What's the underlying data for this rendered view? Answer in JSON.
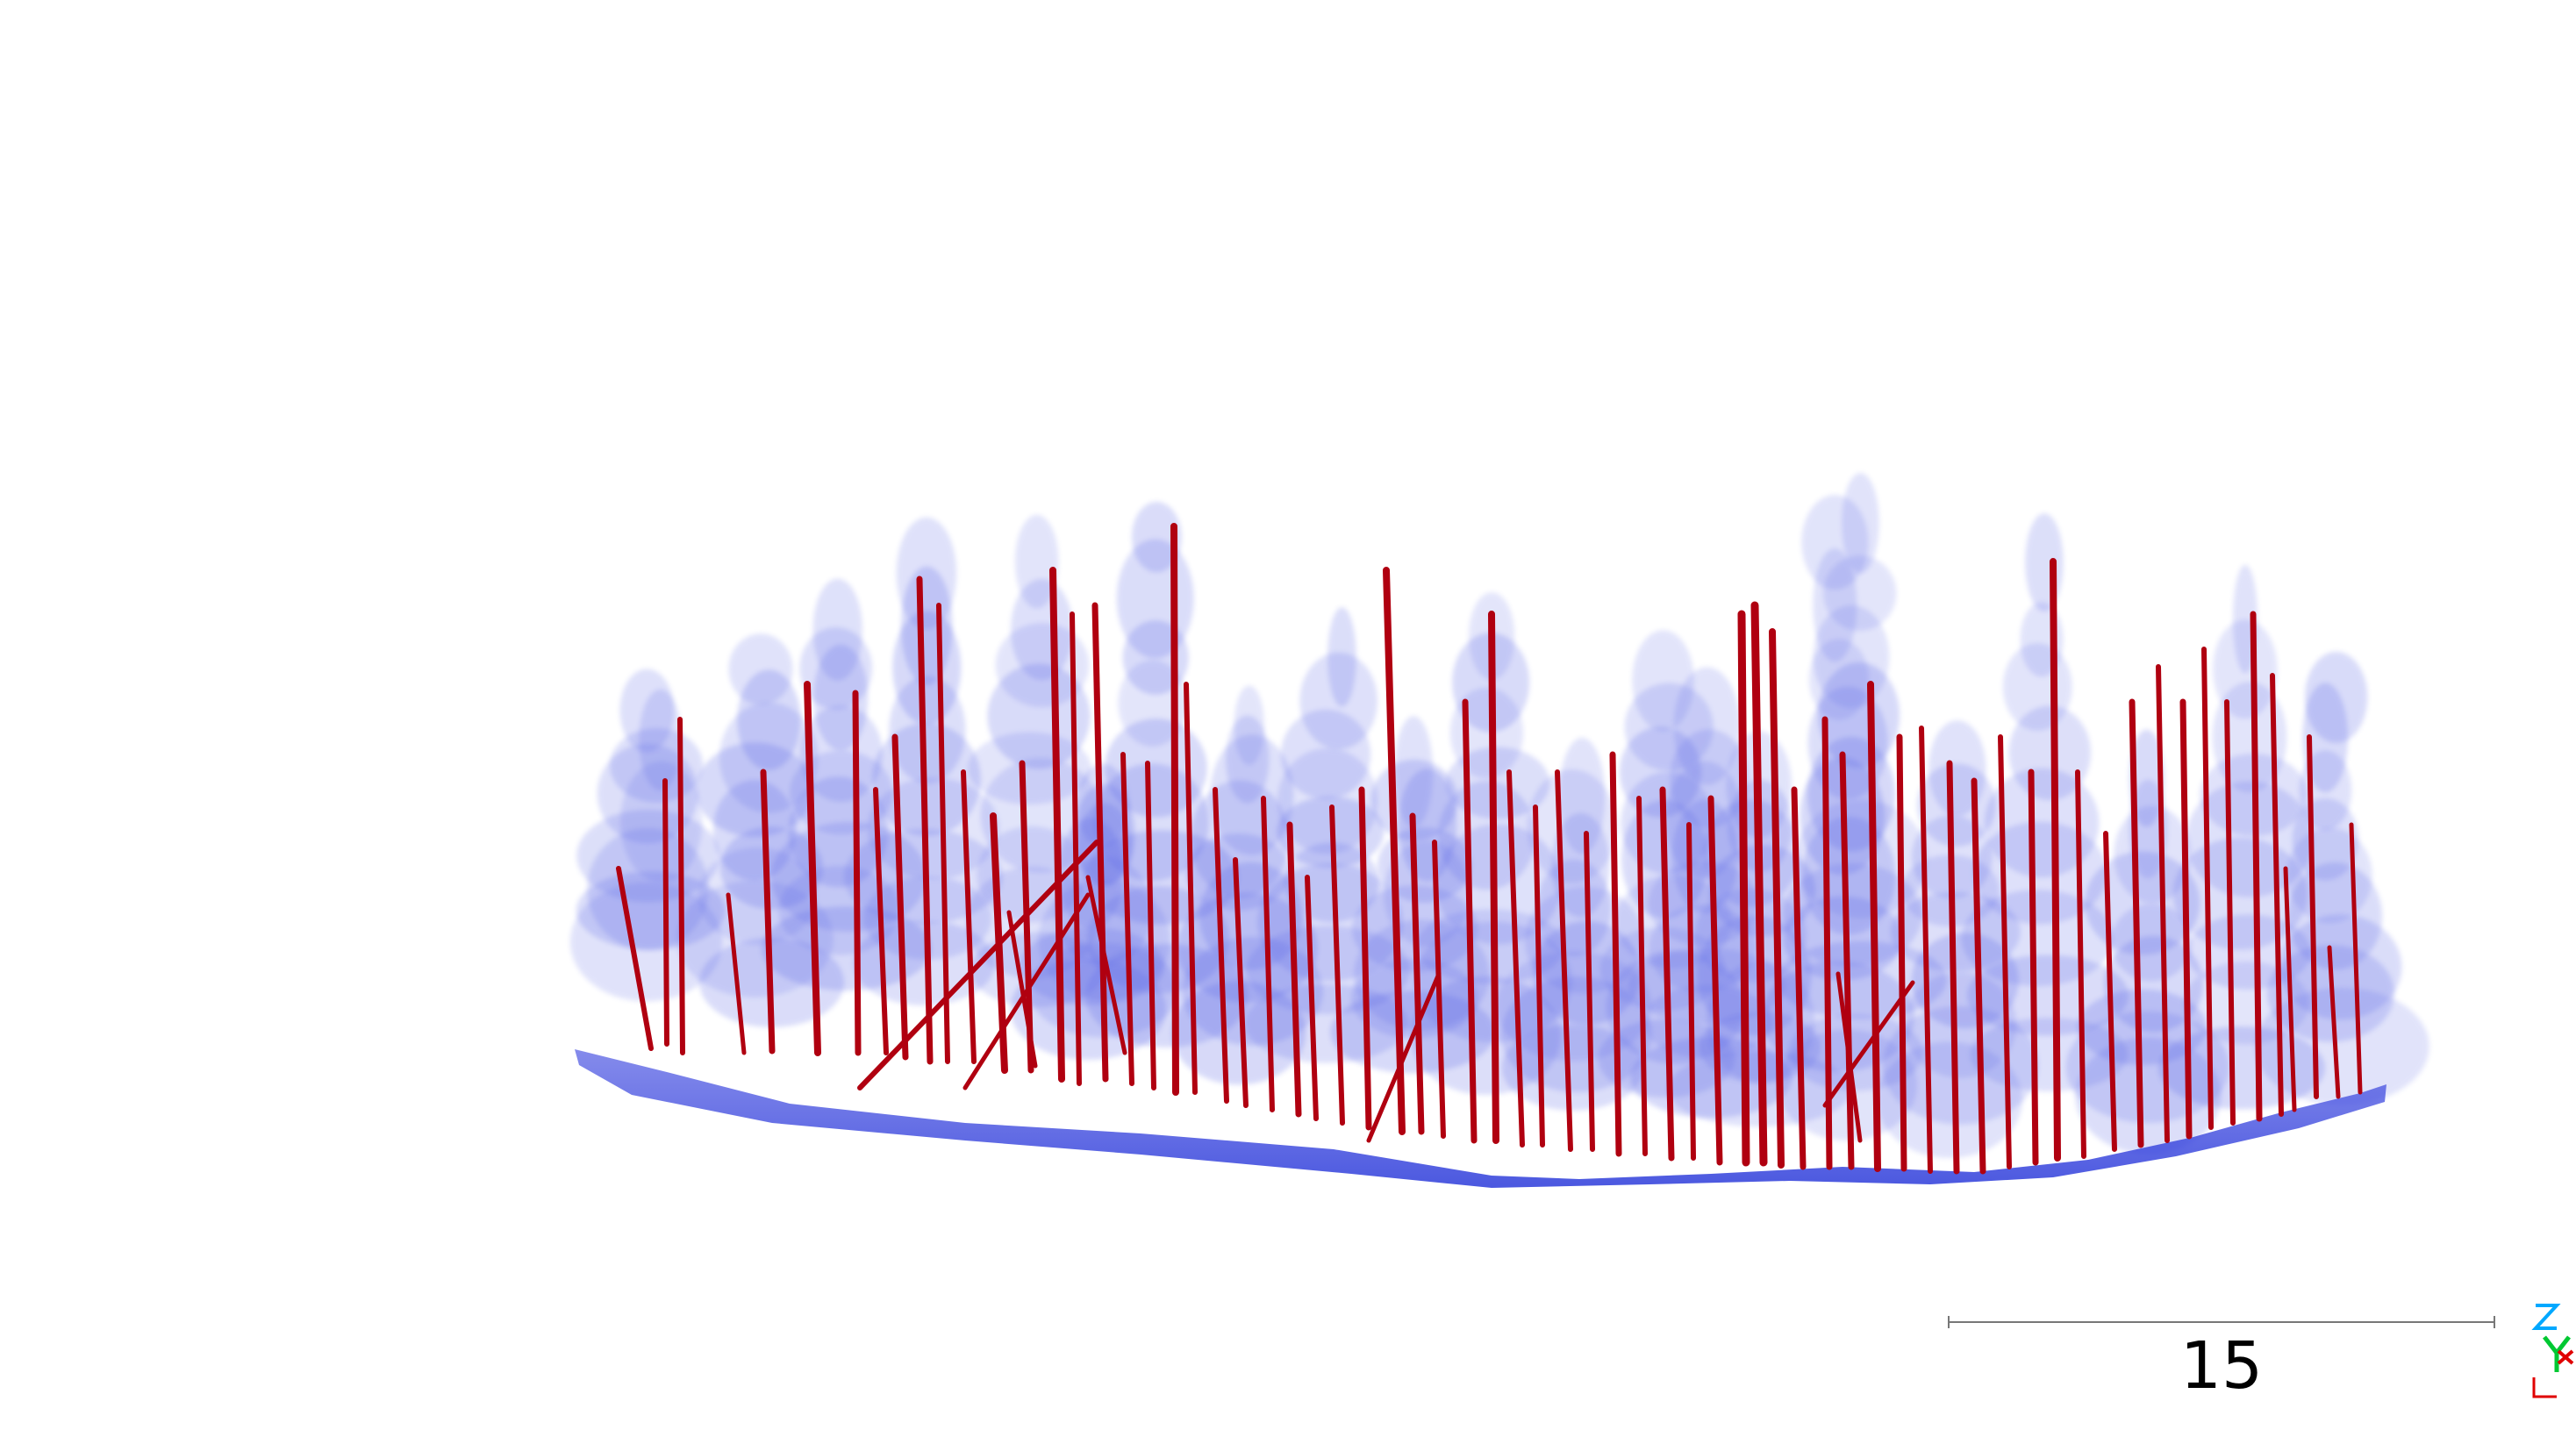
{
  "scene": {
    "background": "#ffffff",
    "point_cloud_color": "#1f2fe0",
    "stem_color": "#b00010",
    "ground_color": "#2a35d6"
  },
  "scale_bar": {
    "label": "15",
    "line_color": "#777777"
  },
  "axis_gizmo": {
    "labels": [
      "Z",
      "Y",
      "X"
    ],
    "colors": {
      "z": "#00a8ff",
      "y": "#00c832",
      "x": "#e00000"
    }
  }
}
